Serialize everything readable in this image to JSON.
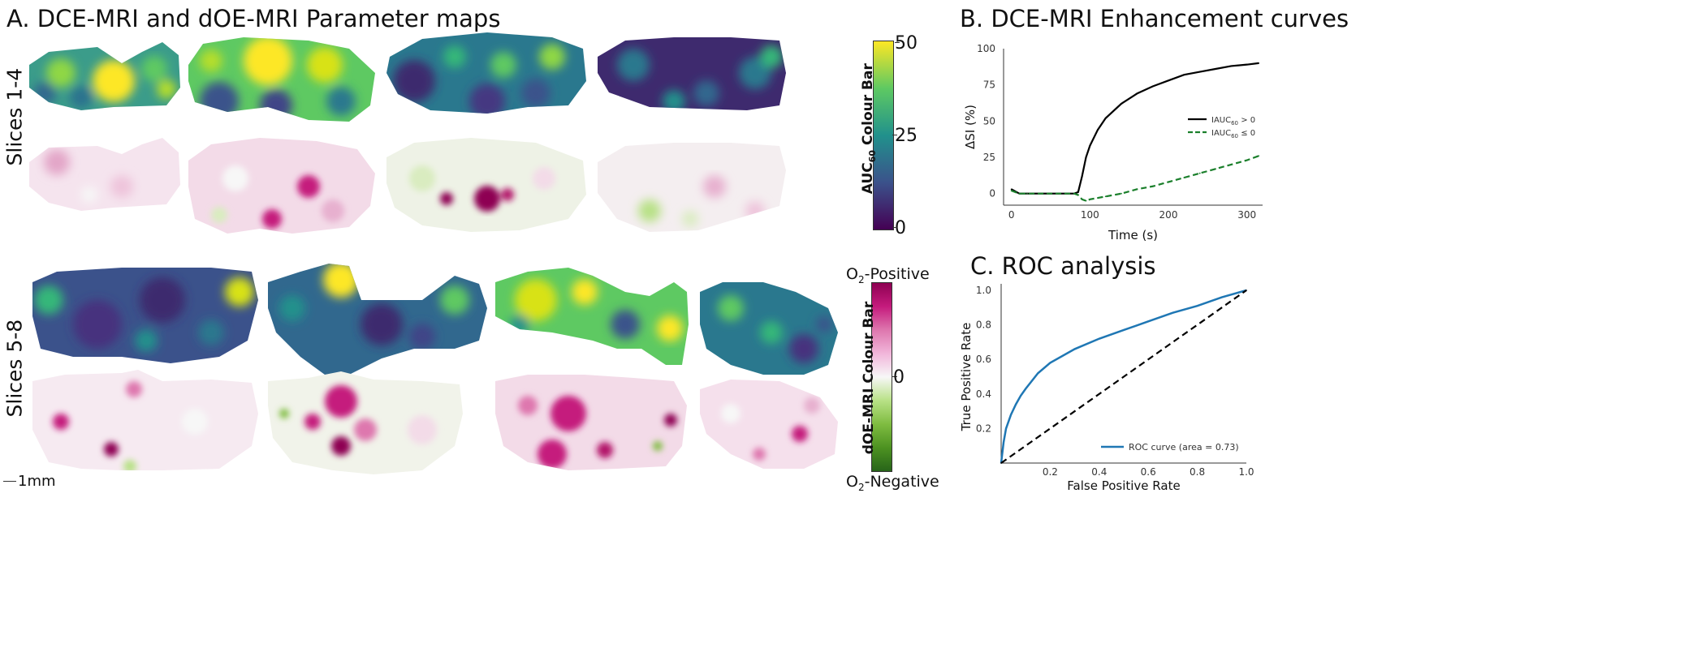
{
  "panel_a": {
    "title": "A. DCE-MRI and dOE-MRI Parameter maps",
    "row_labels": [
      "Slices 1-4",
      "Slices 5-8"
    ],
    "scale_bar_label": "1mm",
    "auc_colourbar": {
      "label_main": "AUC",
      "label_sub": "60",
      "label_rest": " Colour Bar",
      "ticks": [
        "50",
        "25",
        "0"
      ]
    },
    "doe_colourbar": {
      "label": "dOE-MRI Colour Bar",
      "top": "O",
      "top_sub": "2",
      "top_rest": "-Positive",
      "bottom": "O",
      "bottom_sub": "2",
      "bottom_rest": "-Negative",
      "mid_tick": "0"
    },
    "colors": {
      "viridis": [
        "#440154",
        "#3b528b",
        "#21918c",
        "#5ec962",
        "#fde725"
      ],
      "piyg": [
        "#8e0152",
        "#de77ae",
        "#f7f7f7",
        "#b8e186",
        "#276419"
      ]
    }
  },
  "panel_b": {
    "title": "B. DCE-MRI Enhancement curves",
    "chart_data": {
      "type": "line",
      "xlabel": "Time (s)",
      "ylabel": "ΔSI (%)",
      "xlim": [
        -10,
        320
      ],
      "ylim": [
        -8,
        100
      ],
      "xticks": [
        0,
        100,
        200,
        300
      ],
      "yticks": [
        0,
        25,
        50,
        75,
        100
      ],
      "series": [
        {
          "name": "IAUC60 > 0",
          "name_main": "IAUC",
          "name_sub": "60",
          "name_rest": " > 0",
          "color": "#000000",
          "dash": "solid",
          "x": [
            0,
            10,
            20,
            40,
            60,
            80,
            85,
            90,
            95,
            100,
            110,
            120,
            140,
            160,
            180,
            200,
            220,
            240,
            260,
            280,
            300,
            315
          ],
          "y": [
            3,
            0,
            0,
            0,
            0,
            0,
            1,
            12,
            25,
            33,
            44,
            52,
            62,
            69,
            74,
            78,
            82,
            84,
            86,
            88,
            89,
            90
          ]
        },
        {
          "name": "IAUC60 ≤ 0",
          "name_main": "IAUC",
          "name_sub": "60",
          "name_rest": " ≤ 0",
          "color": "#1a7f2b",
          "dash": "dashed",
          "x": [
            0,
            10,
            20,
            40,
            60,
            80,
            85,
            90,
            95,
            100,
            110,
            120,
            140,
            160,
            180,
            200,
            220,
            240,
            260,
            280,
            300,
            315
          ],
          "y": [
            2,
            0,
            0,
            0,
            0,
            0,
            -1,
            -4,
            -5,
            -4,
            -3,
            -2,
            0,
            3,
            5,
            8,
            11,
            14,
            17,
            20,
            23,
            26
          ]
        }
      ],
      "legend": "right"
    }
  },
  "panel_c": {
    "title": "C. ROC analysis",
    "chart_data": {
      "type": "line",
      "xlabel": "False Positive Rate",
      "ylabel": "True Positive Rate",
      "xlim": [
        0,
        1
      ],
      "ylim": [
        0,
        1
      ],
      "xticks": [
        "0.2",
        "0.4",
        "0.6",
        "0.8",
        "1.0"
      ],
      "yticks": [
        "0.2",
        "0.4",
        "0.6",
        "0.8",
        "1.0"
      ],
      "series": [
        {
          "name": "ROC curve (area = 0.73)",
          "color": "#1f77b4",
          "dash": "solid",
          "x": [
            0,
            0.01,
            0.02,
            0.04,
            0.06,
            0.08,
            0.1,
            0.15,
            0.2,
            0.3,
            0.4,
            0.5,
            0.6,
            0.7,
            0.8,
            0.9,
            1.0
          ],
          "y": [
            0,
            0.12,
            0.2,
            0.28,
            0.34,
            0.39,
            0.43,
            0.52,
            0.58,
            0.66,
            0.72,
            0.77,
            0.82,
            0.87,
            0.91,
            0.96,
            1.0
          ]
        },
        {
          "name": "",
          "color": "#000000",
          "dash": "dashed",
          "x": [
            0,
            1
          ],
          "y": [
            0,
            1
          ]
        }
      ],
      "legend": "lower-right"
    }
  }
}
